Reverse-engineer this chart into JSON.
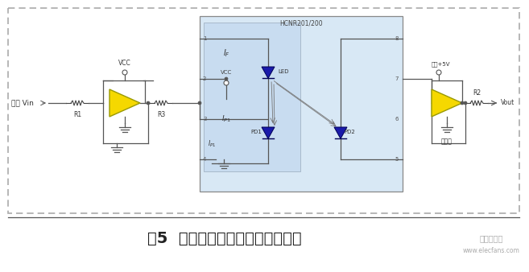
{
  "bg_color": "#ffffff",
  "outer_border_color": "#aaaaaa",
  "ic_box_color": "#d8e8f5",
  "wire_color": "#555555",
  "opamp_fill": "#f5d800",
  "opamp_stroke": "#999900",
  "diode_fill": "#1a1aaa",
  "diode_stroke": "#000055",
  "title_text": "图5  模拟信号采集端的抗干扰电路",
  "title_color": "#222222",
  "title_fontsize": 14,
  "label_fontsize": 6.5,
  "small_fontsize": 5.5,
  "watermark_text": "电子发烧友",
  "watermark_sub": "www.elecfans.com",
  "watermark_color": "#aaaaaa",
  "input_label": "输入 Vin",
  "vcc_label": "VCC",
  "vcc2_label": "VCC",
  "iso_label": "隔离+5V",
  "iso_gnd_label": "隔离地",
  "ic_label": "HCNR201/200",
  "if_label": "I_F",
  "ip1_label": "I_{P1}",
  "vout_label": "Vout"
}
